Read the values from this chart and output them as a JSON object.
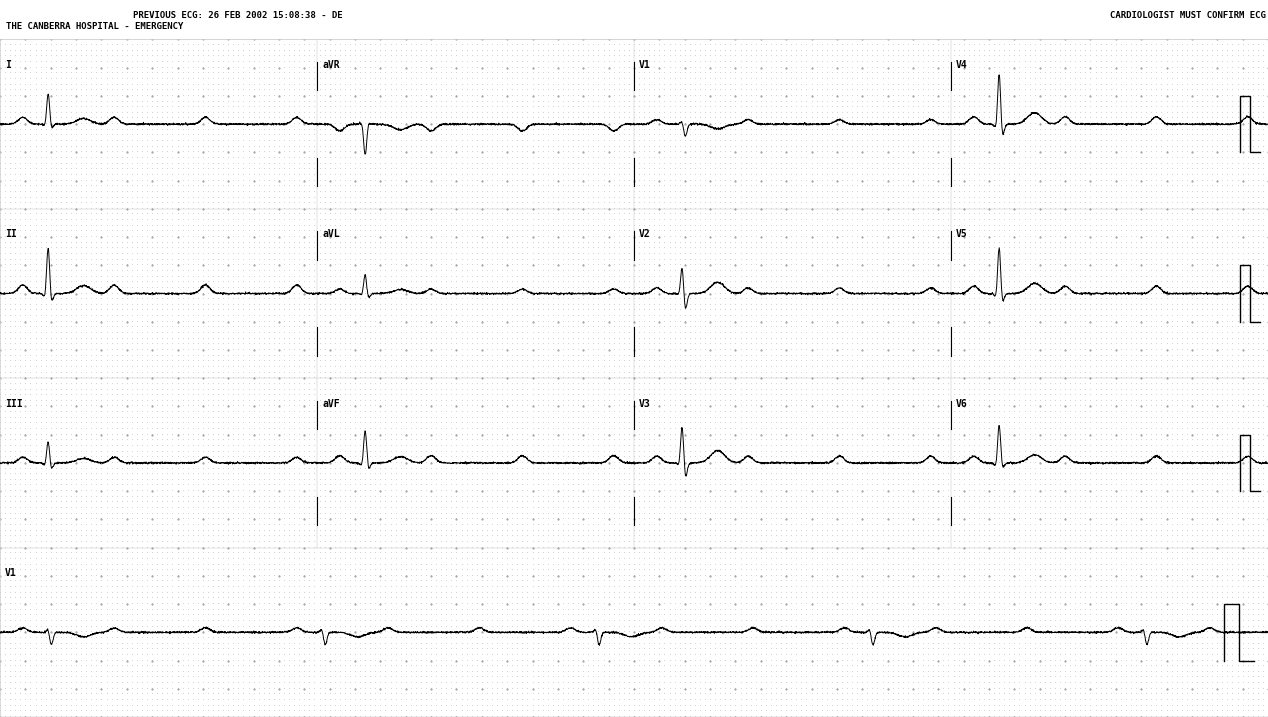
{
  "bg_color": "#ffffff",
  "dot_minor_color": "#aaaaaa",
  "dot_major_color": "#888888",
  "line_color": "#000000",
  "header_line1": "PREVIOUS ECG: 26 FEB 2002 15:08:38 - DE",
  "header_line2": "THE CANBERRA HOSPITAL - EMERGENCY",
  "header_right": "CARDIOLOGIST MUST CONFIRM ECG",
  "fig_width": 12.68,
  "fig_height": 7.17,
  "dpi": 100,
  "num_rows": 4,
  "num_cols": 4,
  "lead_labels_row0": [
    "I",
    "aVR",
    "V1",
    "V4"
  ],
  "lead_labels_row1": [
    "II",
    "aVL",
    "V2",
    "V5"
  ],
  "lead_labels_row2": [
    "III",
    "aVF",
    "V3",
    "V6"
  ],
  "lead_labels_row3": [
    "V1"
  ],
  "pp_interval": 0.72,
  "conduct_ratio": 3,
  "fs": 500
}
